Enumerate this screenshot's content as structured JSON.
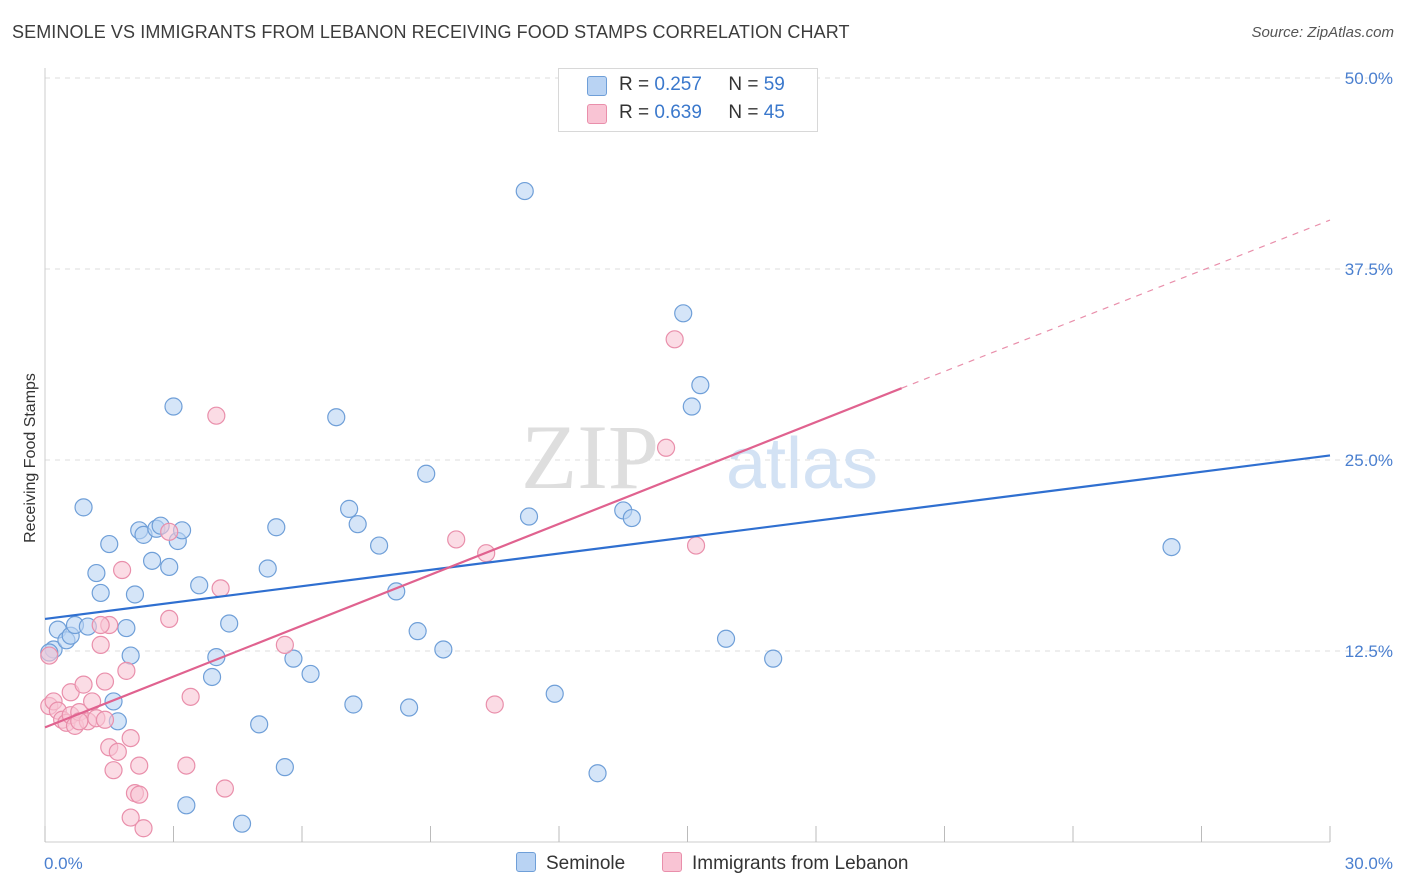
{
  "title": "SEMINOLE VS IMMIGRANTS FROM LEBANON RECEIVING FOOD STAMPS CORRELATION CHART",
  "source": "Source: ZipAtlas.com",
  "watermark": {
    "zip": "ZIP",
    "atlas": "atlas"
  },
  "colors": {
    "blue_fill": "#b9d3f3",
    "blue_stroke": "#6f9fd8",
    "blue_line": "#2f6fd0",
    "pink_fill": "#f9c4d4",
    "pink_stroke": "#e98fab",
    "pink_line": "#e0628f",
    "tick_text": "#4a7fcf",
    "grid": "#dddddd"
  },
  "legend": {
    "rows": [
      {
        "r_label": "R =",
        "r_value": "0.257",
        "n_label": "N =",
        "n_value": "59"
      },
      {
        "r_label": "R =",
        "r_value": "0.639",
        "n_label": "N =",
        "n_value": "45"
      }
    ]
  },
  "bottom_legend": {
    "seminole": "Seminole",
    "lebanon": "Immigrants from Lebanon"
  },
  "chart_data": {
    "type": "scatter",
    "title": "SEMINOLE VS IMMIGRANTS FROM LEBANON RECEIVING FOOD STAMPS CORRELATION CHART",
    "xlabel": "",
    "ylabel": "Receiving Food Stamps",
    "xlim": [
      0,
      30
    ],
    "ylim": [
      0,
      50
    ],
    "x_tick_labels": [
      "0.0%",
      "30.0%"
    ],
    "y_ticks": [
      12.5,
      25.0,
      37.5,
      50.0
    ],
    "y_tick_labels": [
      "12.5%",
      "25.0%",
      "37.5%",
      "50.0%"
    ],
    "grid": true,
    "series": [
      {
        "name": "Seminole",
        "R": 0.257,
        "N": 59,
        "trend": {
          "x": [
            0,
            30
          ],
          "y": [
            14.6,
            25.3
          ]
        },
        "points": [
          [
            0.2,
            12.6
          ],
          [
            0.3,
            13.9
          ],
          [
            0.5,
            13.2
          ],
          [
            0.6,
            13.5
          ],
          [
            0.7,
            14.2
          ],
          [
            0.9,
            21.9
          ],
          [
            1.0,
            14.1
          ],
          [
            1.2,
            17.6
          ],
          [
            1.3,
            16.3
          ],
          [
            1.5,
            19.5
          ],
          [
            1.6,
            9.2
          ],
          [
            1.7,
            7.9
          ],
          [
            1.9,
            14.0
          ],
          [
            2.0,
            12.2
          ],
          [
            2.1,
            16.2
          ],
          [
            2.2,
            20.4
          ],
          [
            2.3,
            20.1
          ],
          [
            2.5,
            18.4
          ],
          [
            2.6,
            20.5
          ],
          [
            2.7,
            20.7
          ],
          [
            2.9,
            18.0
          ],
          [
            3.0,
            28.5
          ],
          [
            3.1,
            19.7
          ],
          [
            3.2,
            20.4
          ],
          [
            3.3,
            2.4
          ],
          [
            3.6,
            16.8
          ],
          [
            3.9,
            10.8
          ],
          [
            4.0,
            12.1
          ],
          [
            4.3,
            14.3
          ],
          [
            4.6,
            1.2
          ],
          [
            5.0,
            7.7
          ],
          [
            5.2,
            17.9
          ],
          [
            5.4,
            20.6
          ],
          [
            5.6,
            4.9
          ],
          [
            5.8,
            12.0
          ],
          [
            6.2,
            11.0
          ],
          [
            6.8,
            27.8
          ],
          [
            7.1,
            21.8
          ],
          [
            7.2,
            9.0
          ],
          [
            7.3,
            20.8
          ],
          [
            7.8,
            19.4
          ],
          [
            8.2,
            16.4
          ],
          [
            8.5,
            8.8
          ],
          [
            8.7,
            13.8
          ],
          [
            8.9,
            24.1
          ],
          [
            9.3,
            12.6
          ],
          [
            11.2,
            42.6
          ],
          [
            11.3,
            21.3
          ],
          [
            11.9,
            9.7
          ],
          [
            12.9,
            4.5
          ],
          [
            13.5,
            21.7
          ],
          [
            13.7,
            21.2
          ],
          [
            14.9,
            34.6
          ],
          [
            15.1,
            28.5
          ],
          [
            15.3,
            29.9
          ],
          [
            15.9,
            13.3
          ],
          [
            17.0,
            12.0
          ],
          [
            26.3,
            19.3
          ],
          [
            0.1,
            12.4
          ]
        ]
      },
      {
        "name": "Immigrants from Lebanon",
        "R": 0.639,
        "N": 45,
        "trend": {
          "x": [
            0,
            20
          ],
          "y": [
            7.5,
            29.7
          ]
        },
        "trend_extension": {
          "x": [
            20,
            30
          ],
          "y": [
            29.7,
            40.7
          ]
        },
        "points": [
          [
            0.1,
            8.9
          ],
          [
            0.2,
            9.2
          ],
          [
            0.3,
            8.6
          ],
          [
            0.4,
            8.0
          ],
          [
            0.5,
            7.8
          ],
          [
            0.6,
            8.3
          ],
          [
            0.6,
            9.8
          ],
          [
            0.7,
            7.6
          ],
          [
            0.8,
            8.5
          ],
          [
            0.9,
            10.3
          ],
          [
            1.0,
            7.9
          ],
          [
            1.1,
            9.2
          ],
          [
            1.2,
            8.1
          ],
          [
            1.3,
            12.9
          ],
          [
            1.4,
            10.5
          ],
          [
            1.5,
            14.2
          ],
          [
            1.5,
            6.2
          ],
          [
            1.6,
            4.7
          ],
          [
            1.7,
            5.9
          ],
          [
            1.8,
            17.8
          ],
          [
            1.9,
            11.2
          ],
          [
            2.0,
            1.6
          ],
          [
            2.0,
            6.8
          ],
          [
            2.1,
            3.2
          ],
          [
            2.2,
            5.0
          ],
          [
            2.2,
            3.1
          ],
          [
            2.3,
            0.9
          ],
          [
            2.9,
            20.3
          ],
          [
            2.9,
            14.6
          ],
          [
            3.3,
            5.0
          ],
          [
            3.4,
            9.5
          ],
          [
            4.0,
            27.9
          ],
          [
            4.1,
            16.6
          ],
          [
            4.2,
            3.5
          ],
          [
            5.6,
            12.9
          ],
          [
            9.6,
            19.8
          ],
          [
            10.3,
            18.9
          ],
          [
            10.5,
            9.0
          ],
          [
            14.5,
            25.8
          ],
          [
            14.7,
            32.9
          ],
          [
            15.2,
            19.4
          ],
          [
            0.1,
            12.2
          ],
          [
            1.3,
            14.2
          ],
          [
            0.8,
            7.9
          ],
          [
            1.4,
            8.0
          ]
        ]
      }
    ]
  }
}
